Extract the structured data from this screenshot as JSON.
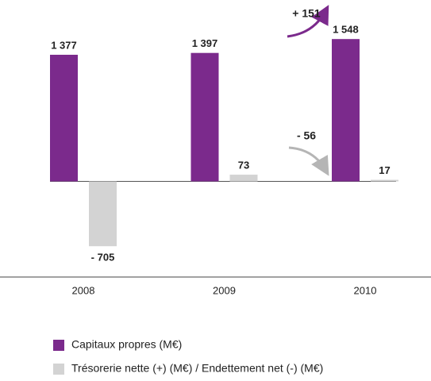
{
  "chart_data": {
    "type": "bar",
    "categories": [
      "2008",
      "2009",
      "2010"
    ],
    "series": [
      {
        "name": "Capitaux propres (M€)",
        "color": "#7b2a8c",
        "values": [
          1377,
          1397,
          1548
        ],
        "value_labels": [
          "1 377",
          "1 397",
          "1 548"
        ]
      },
      {
        "name": "Trésorerie nette (+) (M€) / Endettement net (-) (M€)",
        "color": "#d3d3d3",
        "values": [
          -705,
          73,
          17
        ],
        "value_labels": [
          "- 705",
          "73",
          "17"
        ]
      }
    ],
    "annotations": [
      "+ 151",
      "- 56"
    ],
    "ylim": [
      -850,
      1800
    ]
  }
}
